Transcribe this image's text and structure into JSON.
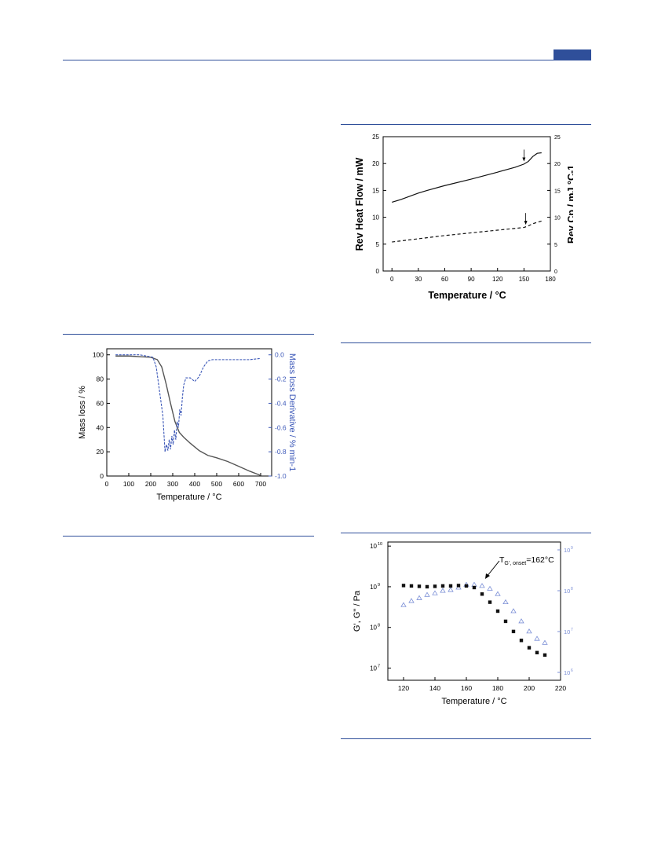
{
  "page": {
    "accent_color": "#2f4f9a"
  },
  "figures": {
    "dsc": {
      "chart_data": {
        "type": "line",
        "xlabel": "Temperature / °C",
        "ylabel": "Rev Heat Flow / mW",
        "y2label": "Rev Cp / mJ °C-1",
        "xlim": [
          -10,
          180
        ],
        "ylim": [
          0,
          25
        ],
        "y2lim": [
          0,
          25
        ],
        "xticks": [
          "0",
          "30",
          "60",
          "90",
          "120",
          "150",
          "180"
        ],
        "yticks": [
          "0",
          "5",
          "10",
          "15",
          "20",
          "25"
        ],
        "y2ticks": [
          "0",
          "5",
          "10",
          "15",
          "20",
          "25"
        ],
        "series": [
          {
            "style": "solid",
            "axis": "left",
            "x": [
              0,
              10,
              20,
              30,
              40,
              60,
              90,
              120,
              140,
              150,
              155,
              160,
              165,
              170
            ],
            "y": [
              12.8,
              13.3,
              13.9,
              14.5,
              15.0,
              15.9,
              17.1,
              18.4,
              19.3,
              19.9,
              20.4,
              21.3,
              21.9,
              22.0
            ]
          },
          {
            "style": "dashed",
            "axis": "right",
            "x": [
              0,
              30,
              60,
              90,
              120,
              150,
              155,
              160,
              170
            ],
            "y": [
              5.4,
              6.0,
              6.6,
              7.1,
              7.6,
              8.1,
              8.4,
              8.8,
              9.3
            ]
          }
        ],
        "arrows": [
          {
            "x": 150,
            "y": 20.4
          },
          {
            "x": 152,
            "y": 8.6
          }
        ]
      }
    },
    "tga": {
      "chart_data": {
        "type": "line",
        "xlabel": "Temperature / °C",
        "ylabel": "Mass loss / %",
        "y2label": "Mass loss Derivative / % min-1",
        "xlim": [
          0,
          750
        ],
        "ylim": [
          0,
          105
        ],
        "y2lim": [
          -1.0,
          0.05
        ],
        "xticks": [
          "0",
          "100",
          "200",
          "300",
          "400",
          "500",
          "600",
          "700"
        ],
        "yticks": [
          "0",
          "20",
          "40",
          "60",
          "80",
          "100"
        ],
        "y2ticks": [
          "0.0",
          "-0.2",
          "-0.4",
          "-0.6",
          "-0.8",
          "-1.0"
        ],
        "series": [
          {
            "name": "",
            "color": "#555555",
            "axis": "left",
            "x": [
              40,
              100,
              150,
              200,
              230,
              250,
              270,
              290,
              310,
              330,
              350,
              380,
              420,
              460,
              500,
              550,
              600,
              650,
              700
            ],
            "y": [
              99,
              99,
              98.5,
              98,
              96,
              90,
              76,
              60,
              45,
              36,
              32,
              27,
              21,
              17,
              15,
              12,
              8,
              4,
              0.5
            ]
          },
          {
            "name": "",
            "color": "#3b57b8",
            "axis": "right",
            "x": [
              40,
              150,
              180,
              210,
              225,
              240,
              255,
              265,
              272,
              278,
              284,
              290,
              296,
              302,
              308,
              314,
              320,
              326,
              332,
              338,
              344,
              350,
              360,
              380,
              400,
              420,
              440,
              460,
              480,
              500,
              550,
              600,
              650,
              700
            ],
            "y": [
              0.0,
              0.0,
              -0.01,
              -0.02,
              -0.1,
              -0.3,
              -0.5,
              -0.8,
              -0.74,
              -0.79,
              -0.7,
              -0.78,
              -0.67,
              -0.74,
              -0.62,
              -0.7,
              -0.55,
              -0.6,
              -0.45,
              -0.5,
              -0.35,
              -0.25,
              -0.19,
              -0.19,
              -0.22,
              -0.18,
              -0.1,
              -0.05,
              -0.04,
              -0.04,
              -0.04,
              -0.04,
              -0.04,
              -0.03
            ]
          }
        ]
      }
    },
    "rheo": {
      "chart_data": {
        "type": "scatter",
        "xlabel": "Temperature / °C",
        "ylabel": "G', G'' / Pa",
        "annotation": "T",
        "annotation_sub": "G', onset",
        "annotation_rest": "=162°C",
        "xlim": [
          110,
          220
        ],
        "xticks": [
          "120",
          "140",
          "160",
          "180",
          "200",
          "220"
        ],
        "yticks_base": [
          "10",
          "10",
          "10",
          "10"
        ],
        "yticks_exp": [
          "10",
          "9",
          "8",
          "7"
        ],
        "y2ticks_base": [
          "10",
          "10",
          "10",
          "10"
        ],
        "y2ticks_exp": [
          "9",
          "8",
          "7",
          "6"
        ],
        "series": [
          {
            "name": "",
            "marker": "filled-square",
            "color": "#111111",
            "x": [
              120,
              125,
              130,
              135,
              140,
              145,
              150,
              155,
              160,
              165,
              170,
              175,
              180,
              185,
              190,
              195,
              200,
              205,
              210
            ],
            "y": [
              9.03,
              9.02,
              9.01,
              9.0,
              9.01,
              9.02,
              9.02,
              9.03,
              9.02,
              8.98,
              8.82,
              8.62,
              8.4,
              8.15,
              7.9,
              7.68,
              7.5,
              7.38,
              7.32
            ]
          },
          {
            "name": "",
            "marker": "open-triangle",
            "color": "#7b8fd6",
            "x": [
              120,
              125,
              130,
              135,
              140,
              145,
              150,
              155,
              160,
              165,
              170,
              175,
              180,
              185,
              190,
              195,
              200,
              205,
              210
            ],
            "y": [
              8.55,
              8.65,
              8.72,
              8.8,
              8.84,
              8.9,
              8.92,
              8.98,
              9.05,
              9.05,
              9.02,
              8.95,
              8.82,
              8.62,
              8.4,
              8.15,
              7.9,
              7.72,
              7.62
            ]
          }
        ]
      }
    }
  }
}
